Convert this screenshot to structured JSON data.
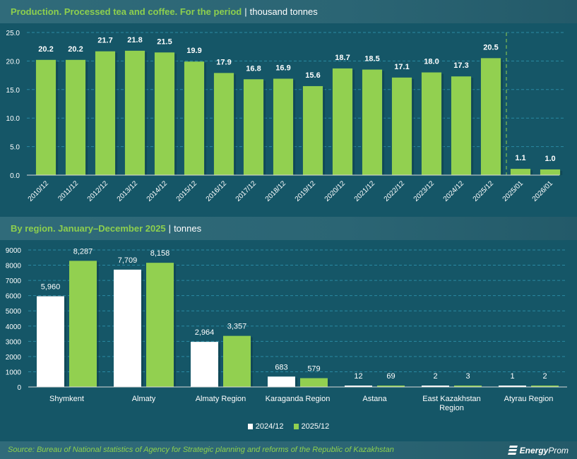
{
  "header1": {
    "title": "Production. Processed tea and coffee. For the period",
    "separator": "|",
    "unit": "thousand tonnes"
  },
  "header2": {
    "title": "By region. January–December 2025",
    "separator": "|",
    "unit": "tonnes"
  },
  "footer": {
    "source": "Source: Bureau of National statistics of Agency for Strategic planning and reforms of the Republic of Kazakhstan",
    "logo_bold": "Energy",
    "logo_rest": "Prom",
    "logo_icon": "energyprom-logo-icon"
  },
  "colors": {
    "green": "#92d050",
    "white": "#ffffff",
    "background": "#155667",
    "grid": "#2a8aa3"
  },
  "legend": {
    "items": [
      {
        "label": "2024/12",
        "color": "#ffffff"
      },
      {
        "label": "2025/12",
        "color": "#92d050"
      }
    ]
  },
  "chart_data": [
    {
      "type": "bar",
      "title": "Production. Processed tea and coffee. For the period",
      "ylabel": "thousand tonnes",
      "xlabel": "",
      "categories": [
        "2010/12",
        "2011/12",
        "2012/12",
        "2013/12",
        "2014/12",
        "2015/12",
        "2016/12",
        "2017/12",
        "2018/12",
        "2019/12",
        "2020/12",
        "2021/12",
        "2022/12",
        "2023/12",
        "2024/12",
        "2025/12",
        "2025/01",
        "2026/01"
      ],
      "values": [
        20.2,
        20.2,
        21.7,
        21.8,
        21.5,
        19.9,
        17.9,
        16.8,
        16.9,
        15.6,
        18.7,
        18.5,
        17.1,
        18.0,
        17.3,
        20.5,
        1.1,
        1.0
      ],
      "labels": [
        "20.2",
        "20.2",
        "21.7",
        "21.8",
        "21.5",
        "19.9",
        "17.9",
        "16.8",
        "16.9",
        "15.6",
        "18.7",
        "18.5",
        "17.1",
        "18.0",
        "17.3",
        "20.5",
        "1.1",
        "1.0"
      ],
      "ylim": [
        0,
        25
      ],
      "yticks": [
        "0.0",
        "5.0",
        "10.0",
        "15.0",
        "20.0",
        "25.0"
      ],
      "grid": true,
      "divider_after_index": 15
    },
    {
      "type": "bar",
      "title": "By region. January–December 2025",
      "ylabel": "tonnes",
      "xlabel": "",
      "categories": [
        "Shymkent",
        "Almaty",
        "Almaty Region",
        "Karaganda Region",
        "Astana",
        "East Kazakhstan Region",
        "Atyrau Region"
      ],
      "category_lines": [
        [
          "Shymkent"
        ],
        [
          "Almaty"
        ],
        [
          "Almaty Region"
        ],
        [
          "Karaganda Region"
        ],
        [
          "Astana"
        ],
        [
          "East Kazakhstan",
          "Region"
        ],
        [
          "Atyrau Region"
        ]
      ],
      "series": [
        {
          "name": "2024/12",
          "values": [
            5960,
            7709,
            2964,
            683,
            12,
            2,
            1
          ],
          "labels": [
            "5,960",
            "7,709",
            "2,964",
            "683",
            "12",
            "2",
            "1"
          ]
        },
        {
          "name": "2025/12",
          "values": [
            8287,
            8158,
            3357,
            579,
            69,
            3,
            2
          ],
          "labels": [
            "8,287",
            "8,158",
            "3,357",
            "579",
            "69",
            "3",
            "2"
          ]
        }
      ],
      "ylim": [
        0,
        9000
      ],
      "yticks": [
        "0",
        "1000",
        "2000",
        "3000",
        "4000",
        "5000",
        "6000",
        "7000",
        "8000",
        "9000"
      ],
      "grid": true,
      "legend": "bottom"
    }
  ]
}
